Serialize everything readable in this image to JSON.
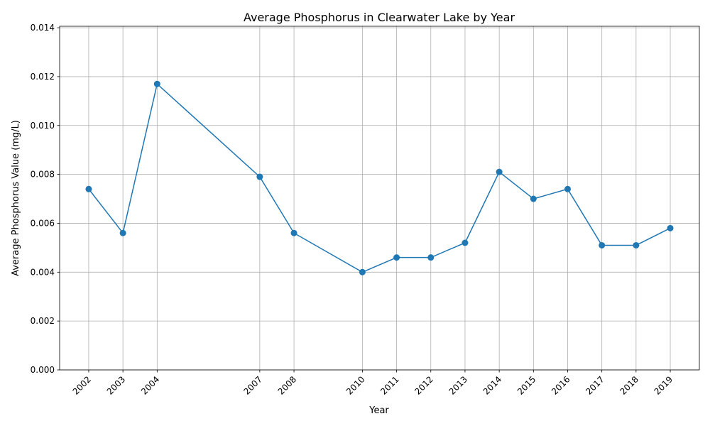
{
  "chart_data": {
    "type": "line",
    "title": "Average Phosphorus in Clearwater Lake by Year",
    "xlabel": "Year",
    "ylabel": "Average Phosphorus Value (mg/L)",
    "x": [
      2002,
      2003,
      2004,
      2007,
      2008,
      2010,
      2011,
      2012,
      2013,
      2014,
      2015,
      2016,
      2017,
      2018,
      2019
    ],
    "x_tick_labels": [
      "2002",
      "2003",
      "2004",
      "2007",
      "2008",
      "2010",
      "2011",
      "2012",
      "2013",
      "2014",
      "2015",
      "2016",
      "2017",
      "2018",
      "2019"
    ],
    "series": [
      {
        "values": [
          0.0074,
          0.0056,
          0.0117,
          0.0079,
          0.0056,
          0.004,
          0.0046,
          0.0046,
          0.0052,
          0.0081,
          0.007,
          0.0074,
          0.0051,
          0.0051,
          0.0058
        ],
        "color": "#1f77b4",
        "marker": "circle"
      }
    ],
    "xlim": [
      2001.15,
      2019.85
    ],
    "ylim": [
      0,
      0.01406
    ],
    "y_ticks": [
      0,
      0.002,
      0.004,
      0.006,
      0.008,
      0.01,
      0.012,
      0.014
    ],
    "y_tick_labels": [
      "0.000",
      "0.002",
      "0.004",
      "0.006",
      "0.008",
      "0.010",
      "0.012",
      "0.014"
    ],
    "grid": true,
    "x_tick_rotation": 45
  }
}
